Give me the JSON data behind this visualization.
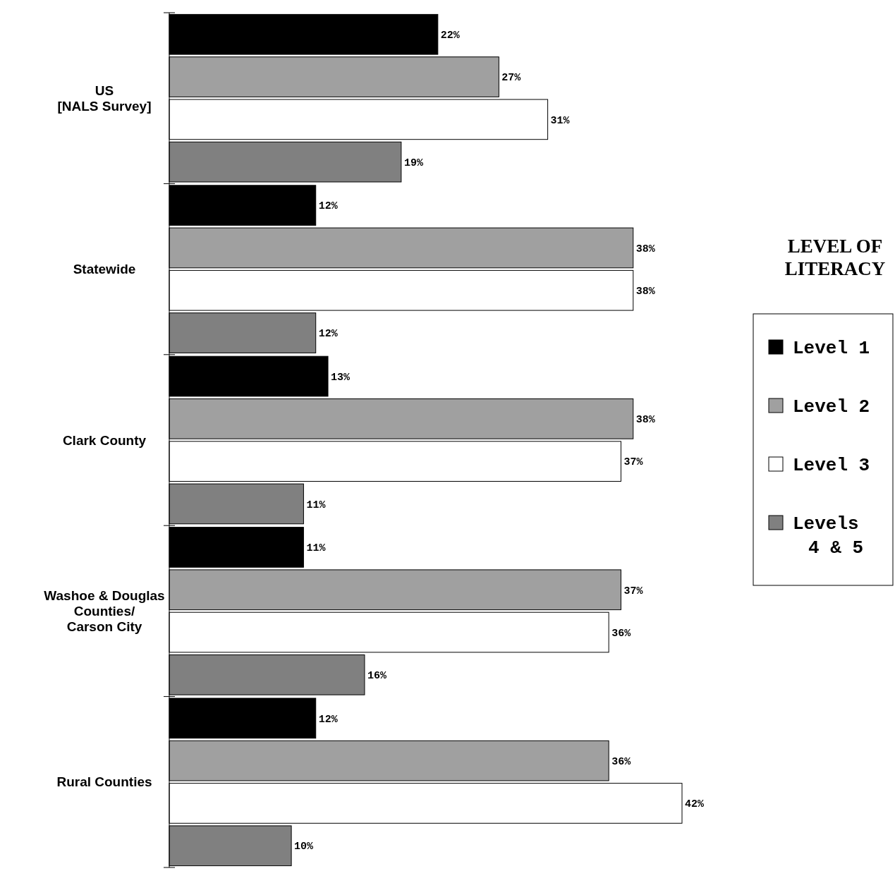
{
  "chart_data": {
    "type": "bar",
    "orientation": "horizontal",
    "categories": [
      "US\n[NALS Survey]",
      "Statewide",
      "Clark County",
      "Washoe & Douglas\nCounties/\nCarson City",
      "Rural Counties"
    ],
    "series": [
      {
        "name": "Level 1",
        "color": "#000000",
        "values": [
          22,
          12,
          13,
          11,
          12
        ],
        "value_labels": [
          "22%",
          "12%",
          "13%",
          "11%",
          "12%"
        ]
      },
      {
        "name": "Level 2",
        "color": "#a0a0a0",
        "values": [
          27,
          38,
          38,
          37,
          36
        ],
        "value_labels": [
          "27%",
          "38%",
          "38%",
          "37%",
          "36%"
        ]
      },
      {
        "name": "Level 3",
        "color": "#ffffff",
        "values": [
          31,
          38,
          37,
          36,
          42
        ],
        "value_labels": [
          "31%",
          "38%",
          "37%",
          "36%",
          "42%"
        ]
      },
      {
        "name": "Levels\n4 & 5",
        "color": "#808080",
        "values": [
          19,
          12,
          11,
          16,
          10
        ],
        "value_labels": [
          "19%",
          "12%",
          "11%",
          "16%",
          "10%"
        ]
      }
    ],
    "legend": "right",
    "legend_title": "LEVEL OF\nLITERACY"
  }
}
